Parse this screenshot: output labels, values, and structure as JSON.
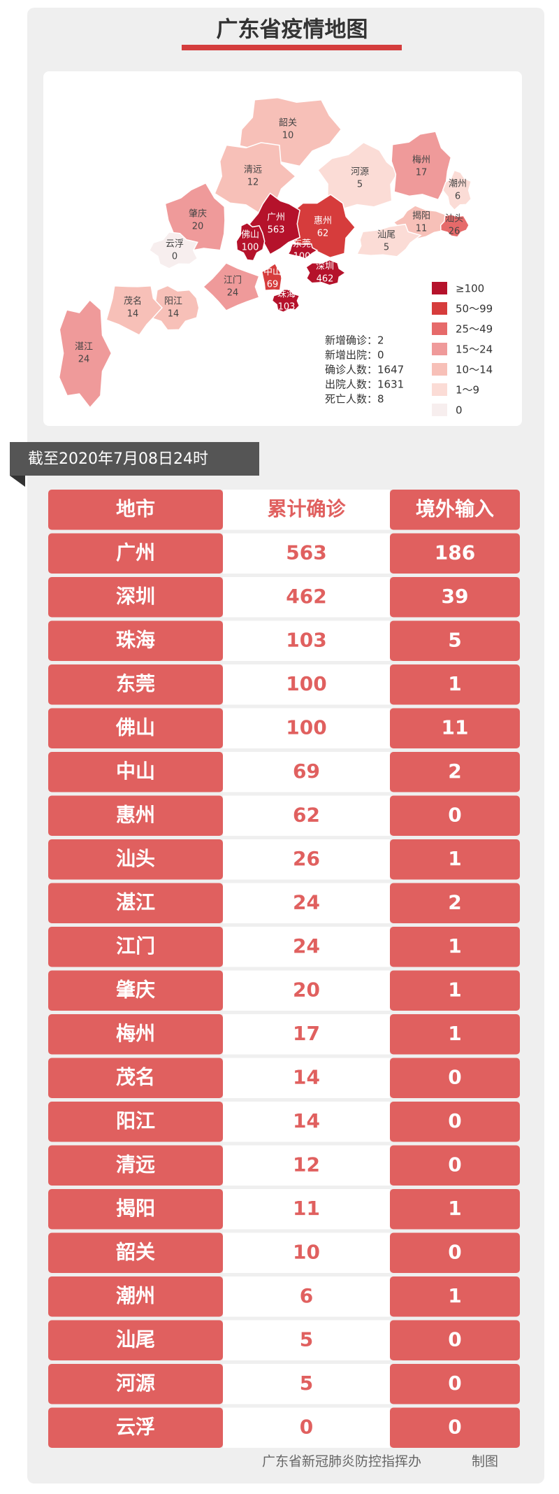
{
  "header": {
    "title": "广东省疫情地图"
  },
  "map": {
    "regions": [
      {
        "name": "韶关",
        "value": "10",
        "color": "#f7c0b8"
      },
      {
        "name": "清远",
        "value": "12",
        "color": "#f7c0b8"
      },
      {
        "name": "河源",
        "value": "5",
        "color": "#fbdcd6"
      },
      {
        "name": "梅州",
        "value": "17",
        "color": "#ef9a9a"
      },
      {
        "name": "潮州",
        "value": "6",
        "color": "#fbdcd6"
      },
      {
        "name": "揭阳",
        "value": "11",
        "color": "#f7c0b8"
      },
      {
        "name": "汕头",
        "value": "26",
        "color": "#e66a6a"
      },
      {
        "name": "汕尾",
        "value": "5",
        "color": "#fbdcd6"
      },
      {
        "name": "惠州",
        "value": "62",
        "color": "#d63c3c"
      },
      {
        "name": "肇庆",
        "value": "20",
        "color": "#ef9a9a"
      },
      {
        "name": "云浮",
        "value": "0",
        "color": "#f7eeee"
      },
      {
        "name": "广州",
        "value": "563",
        "color": "#b5122b"
      },
      {
        "name": "佛山",
        "value": "100",
        "color": "#b5122b"
      },
      {
        "name": "东莞",
        "value": "100",
        "color": "#b5122b"
      },
      {
        "name": "深圳",
        "value": "462",
        "color": "#b5122b"
      },
      {
        "name": "中山",
        "value": "69",
        "color": "#d63c3c"
      },
      {
        "name": "珠海",
        "value": "103",
        "color": "#b5122b"
      },
      {
        "name": "江门",
        "value": "24",
        "color": "#ef9a9a"
      },
      {
        "name": "阳江",
        "value": "14",
        "color": "#f7c0b8"
      },
      {
        "name": "茂名",
        "value": "14",
        "color": "#f7c0b8"
      },
      {
        "name": "湛江",
        "value": "24",
        "color": "#ef9a9a"
      }
    ],
    "stats": [
      "新增确诊：2",
      "新增出院：0",
      "确诊人数：1647",
      "出院人数：1631",
      "死亡人数：8"
    ],
    "legend": [
      {
        "label": "≥100",
        "color": "#b5122b"
      },
      {
        "label": "50～99",
        "color": "#d63c3c"
      },
      {
        "label": "25～49",
        "color": "#e66a6a"
      },
      {
        "label": "15～24",
        "color": "#ef9a9a"
      },
      {
        "label": "10～14",
        "color": "#f7c0b8"
      },
      {
        "label": "1～9",
        "color": "#fbdcd6"
      },
      {
        "label": "0",
        "color": "#f7eeee"
      }
    ]
  },
  "date": "截至2020年7月08日24时",
  "table": {
    "header": [
      "地市",
      "累计确诊",
      "境外输入"
    ],
    "rows": [
      [
        "广州",
        "563",
        "186"
      ],
      [
        "深圳",
        "462",
        "39"
      ],
      [
        "珠海",
        "103",
        "5"
      ],
      [
        "东莞",
        "100",
        "1"
      ],
      [
        "佛山",
        "100",
        "11"
      ],
      [
        "中山",
        "69",
        "2"
      ],
      [
        "惠州",
        "62",
        "0"
      ],
      [
        "汕头",
        "26",
        "1"
      ],
      [
        "湛江",
        "24",
        "2"
      ],
      [
        "江门",
        "24",
        "1"
      ],
      [
        "肇庆",
        "20",
        "1"
      ],
      [
        "梅州",
        "17",
        "1"
      ],
      [
        "茂名",
        "14",
        "0"
      ],
      [
        "阳江",
        "14",
        "0"
      ],
      [
        "清远",
        "12",
        "0"
      ],
      [
        "揭阳",
        "11",
        "1"
      ],
      [
        "韶关",
        "10",
        "0"
      ],
      [
        "潮州",
        "6",
        "1"
      ],
      [
        "汕尾",
        "5",
        "0"
      ],
      [
        "河源",
        "5",
        "0"
      ],
      [
        "云浮",
        "0",
        "0"
      ]
    ]
  },
  "footer": {
    "org": "广东省新冠肺炎防控指挥办",
    "note": "制图"
  }
}
